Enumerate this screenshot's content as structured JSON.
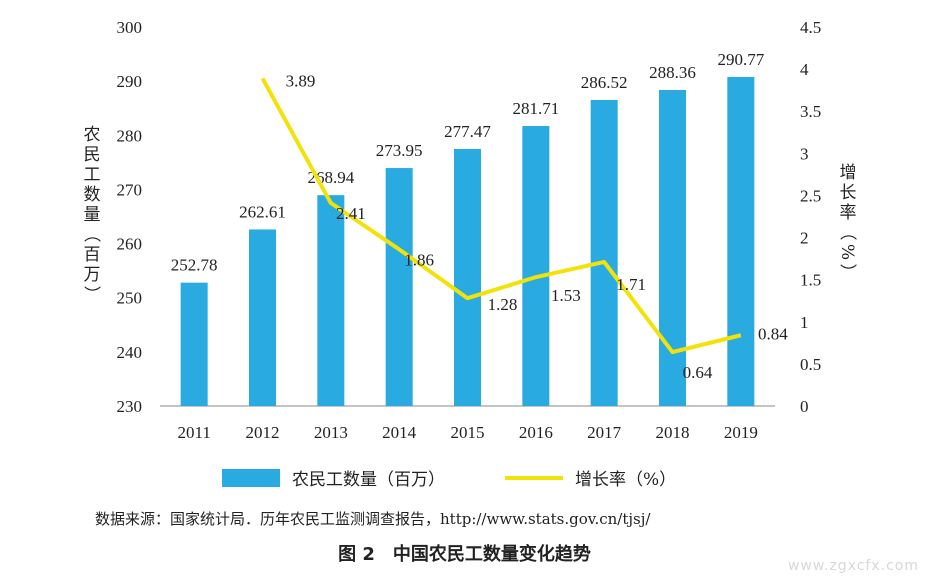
{
  "chart_data": {
    "type": "bar+line",
    "categories": [
      "2011",
      "2012",
      "2013",
      "2014",
      "2015",
      "2016",
      "2017",
      "2018",
      "2019"
    ],
    "series": [
      {
        "name": "农民工数量（百万）",
        "type": "bar",
        "axis": "left",
        "values": [
          252.78,
          262.61,
          268.94,
          273.95,
          277.47,
          281.71,
          286.52,
          288.36,
          290.77
        ]
      },
      {
        "name": "增长率（%）",
        "type": "line",
        "axis": "right",
        "x": [
          "2012",
          "2013",
          "2014",
          "2015",
          "2016",
          "2017",
          "2018",
          "2019"
        ],
        "values": [
          3.89,
          2.41,
          1.86,
          1.28,
          1.53,
          1.71,
          0.64,
          0.84
        ]
      }
    ],
    "ylabel": "农民工数量（百万）",
    "y2label": "增长率（%）",
    "ylim": [
      230,
      300
    ],
    "y_ticks": [
      230,
      240,
      250,
      260,
      270,
      280,
      290,
      300
    ],
    "y2lim": [
      0,
      4.5
    ],
    "y2_ticks": [
      "0",
      "0.5",
      "1",
      "1.5",
      "2",
      "2.5",
      "3",
      "3.5",
      "4",
      "4.5"
    ],
    "legend_position": "bottom",
    "grid": false,
    "colors": {
      "bar": "#29abe2",
      "line": "#f2e20a"
    }
  },
  "legend": {
    "bar_label": "农民工数量（百万）",
    "line_label": "增长率（%）"
  },
  "source": "数据来源：国家统计局．历年农民工监测调查报告，http://www.stats.gov.cn/tjsj/",
  "caption": "图 2　中国农民工数量变化趋势",
  "watermark": "www.zgxcfx.com"
}
